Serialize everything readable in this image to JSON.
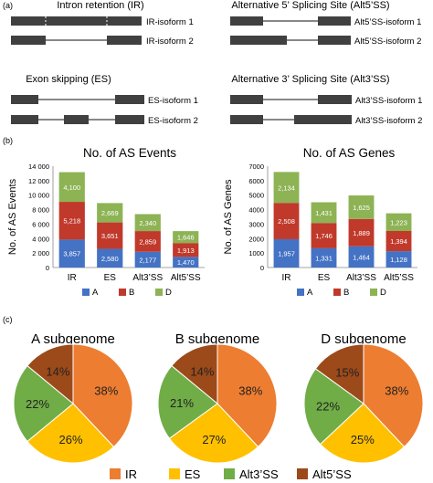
{
  "panels": {
    "a": {
      "label": "(a)",
      "diagrams": [
        {
          "title": "Intron retention (IR)",
          "isoforms": [
            "IR-isoform 1",
            "IR-isoform 2"
          ]
        },
        {
          "title": "Alternative 5’ Splicing Site (Alt5’SS)",
          "isoforms": [
            "Alt5’SS-isoform 1",
            "Alt5’SS-isoform 2"
          ]
        },
        {
          "title": "Exon skipping (ES)",
          "isoforms": [
            "ES-isoform 1",
            "ES-isoform 2"
          ]
        },
        {
          "title": "Alternative 3’ Splicing Site (Alt3’SS)",
          "isoforms": [
            "Alt3’SS-isoform 1",
            "Alt3’SS-isoform 2"
          ]
        }
      ]
    },
    "b": {
      "label": "(b)"
    },
    "c": {
      "label": "(c)"
    }
  },
  "colors": {
    "A": "#4472c4",
    "B": "#c0392b",
    "D": "#8db354",
    "IR": "#ed7d31",
    "ES": "#ffc000",
    "Alt3SS": "#70ad47",
    "Alt5SS": "#9c4a1a",
    "exon": "#404040",
    "intron": "#606060"
  },
  "chart_data": [
    {
      "type": "bar",
      "stacked": true,
      "title": "No. of AS Events",
      "ylabel": "No. of AS Events",
      "categories": [
        "IR",
        "ES",
        "Alt3’SS",
        "Alt5’SS"
      ],
      "ylim": [
        0,
        14000
      ],
      "yticks": [
        "0",
        "2 000",
        "4 000",
        "6 000",
        "8 000",
        "10 000",
        "12 000",
        "14 000"
      ],
      "series": [
        {
          "name": "A",
          "values": [
            3857,
            2580,
            2177,
            1470
          ],
          "labels": [
            "3,857",
            "2,580",
            "2,177",
            "1,470"
          ]
        },
        {
          "name": "B",
          "values": [
            5218,
            3651,
            2859,
            1913
          ],
          "labels": [
            "5,218",
            "3,651",
            "2,859",
            "1,913"
          ]
        },
        {
          "name": "D",
          "values": [
            4100,
            2669,
            2340,
            1646
          ],
          "labels": [
            "4,100",
            "2,669",
            "2,340",
            "1,646"
          ]
        }
      ],
      "legend": "bottom"
    },
    {
      "type": "bar",
      "stacked": true,
      "title": "No. of AS Genes",
      "ylabel": "No. of AS Genes",
      "categories": [
        "IR",
        "ES",
        "Alt3’SS",
        "Alt5’SS"
      ],
      "ylim": [
        0,
        7000
      ],
      "yticks": [
        "0",
        "1000",
        "2000",
        "3000",
        "4000",
        "5000",
        "6000",
        "7000"
      ],
      "series": [
        {
          "name": "A",
          "values": [
            1957,
            1331,
            1464,
            1128
          ],
          "labels": [
            "1,957",
            "1,331",
            "1,464",
            "1,128"
          ]
        },
        {
          "name": "B",
          "values": [
            2508,
            1746,
            1889,
            1394
          ],
          "labels": [
            "2,508",
            "1,746",
            "1,889",
            "1,394"
          ]
        },
        {
          "name": "D",
          "values": [
            2134,
            1431,
            1625,
            1223
          ],
          "labels": [
            "2,134",
            "1,431",
            "1,625",
            "1,223"
          ]
        }
      ],
      "legend": "bottom"
    },
    {
      "type": "pie",
      "title": "A subgenome",
      "slices": [
        {
          "name": "IR",
          "value": 38,
          "label": "38%"
        },
        {
          "name": "ES",
          "value": 26,
          "label": "26%"
        },
        {
          "name": "Alt3’SS",
          "value": 22,
          "label": "22%"
        },
        {
          "name": "Alt5’SS",
          "value": 14,
          "label": "14%"
        }
      ]
    },
    {
      "type": "pie",
      "title": "B subgenome",
      "slices": [
        {
          "name": "IR",
          "value": 38,
          "label": "38%"
        },
        {
          "name": "ES",
          "value": 27,
          "label": "27%"
        },
        {
          "name": "Alt3’SS",
          "value": 21,
          "label": "21%"
        },
        {
          "name": "Alt5’SS",
          "value": 14,
          "label": "14%"
        }
      ]
    },
    {
      "type": "pie",
      "title": "D subgenome",
      "slices": [
        {
          "name": "IR",
          "value": 38,
          "label": "38%"
        },
        {
          "name": "ES",
          "value": 25,
          "label": "25%"
        },
        {
          "name": "Alt3’SS",
          "value": 22,
          "label": "22%"
        },
        {
          "name": "Alt5’SS",
          "value": 15,
          "label": "15%"
        }
      ]
    }
  ],
  "pie_legend": [
    "IR",
    "ES",
    "Alt3’SS",
    "Alt5’SS"
  ]
}
